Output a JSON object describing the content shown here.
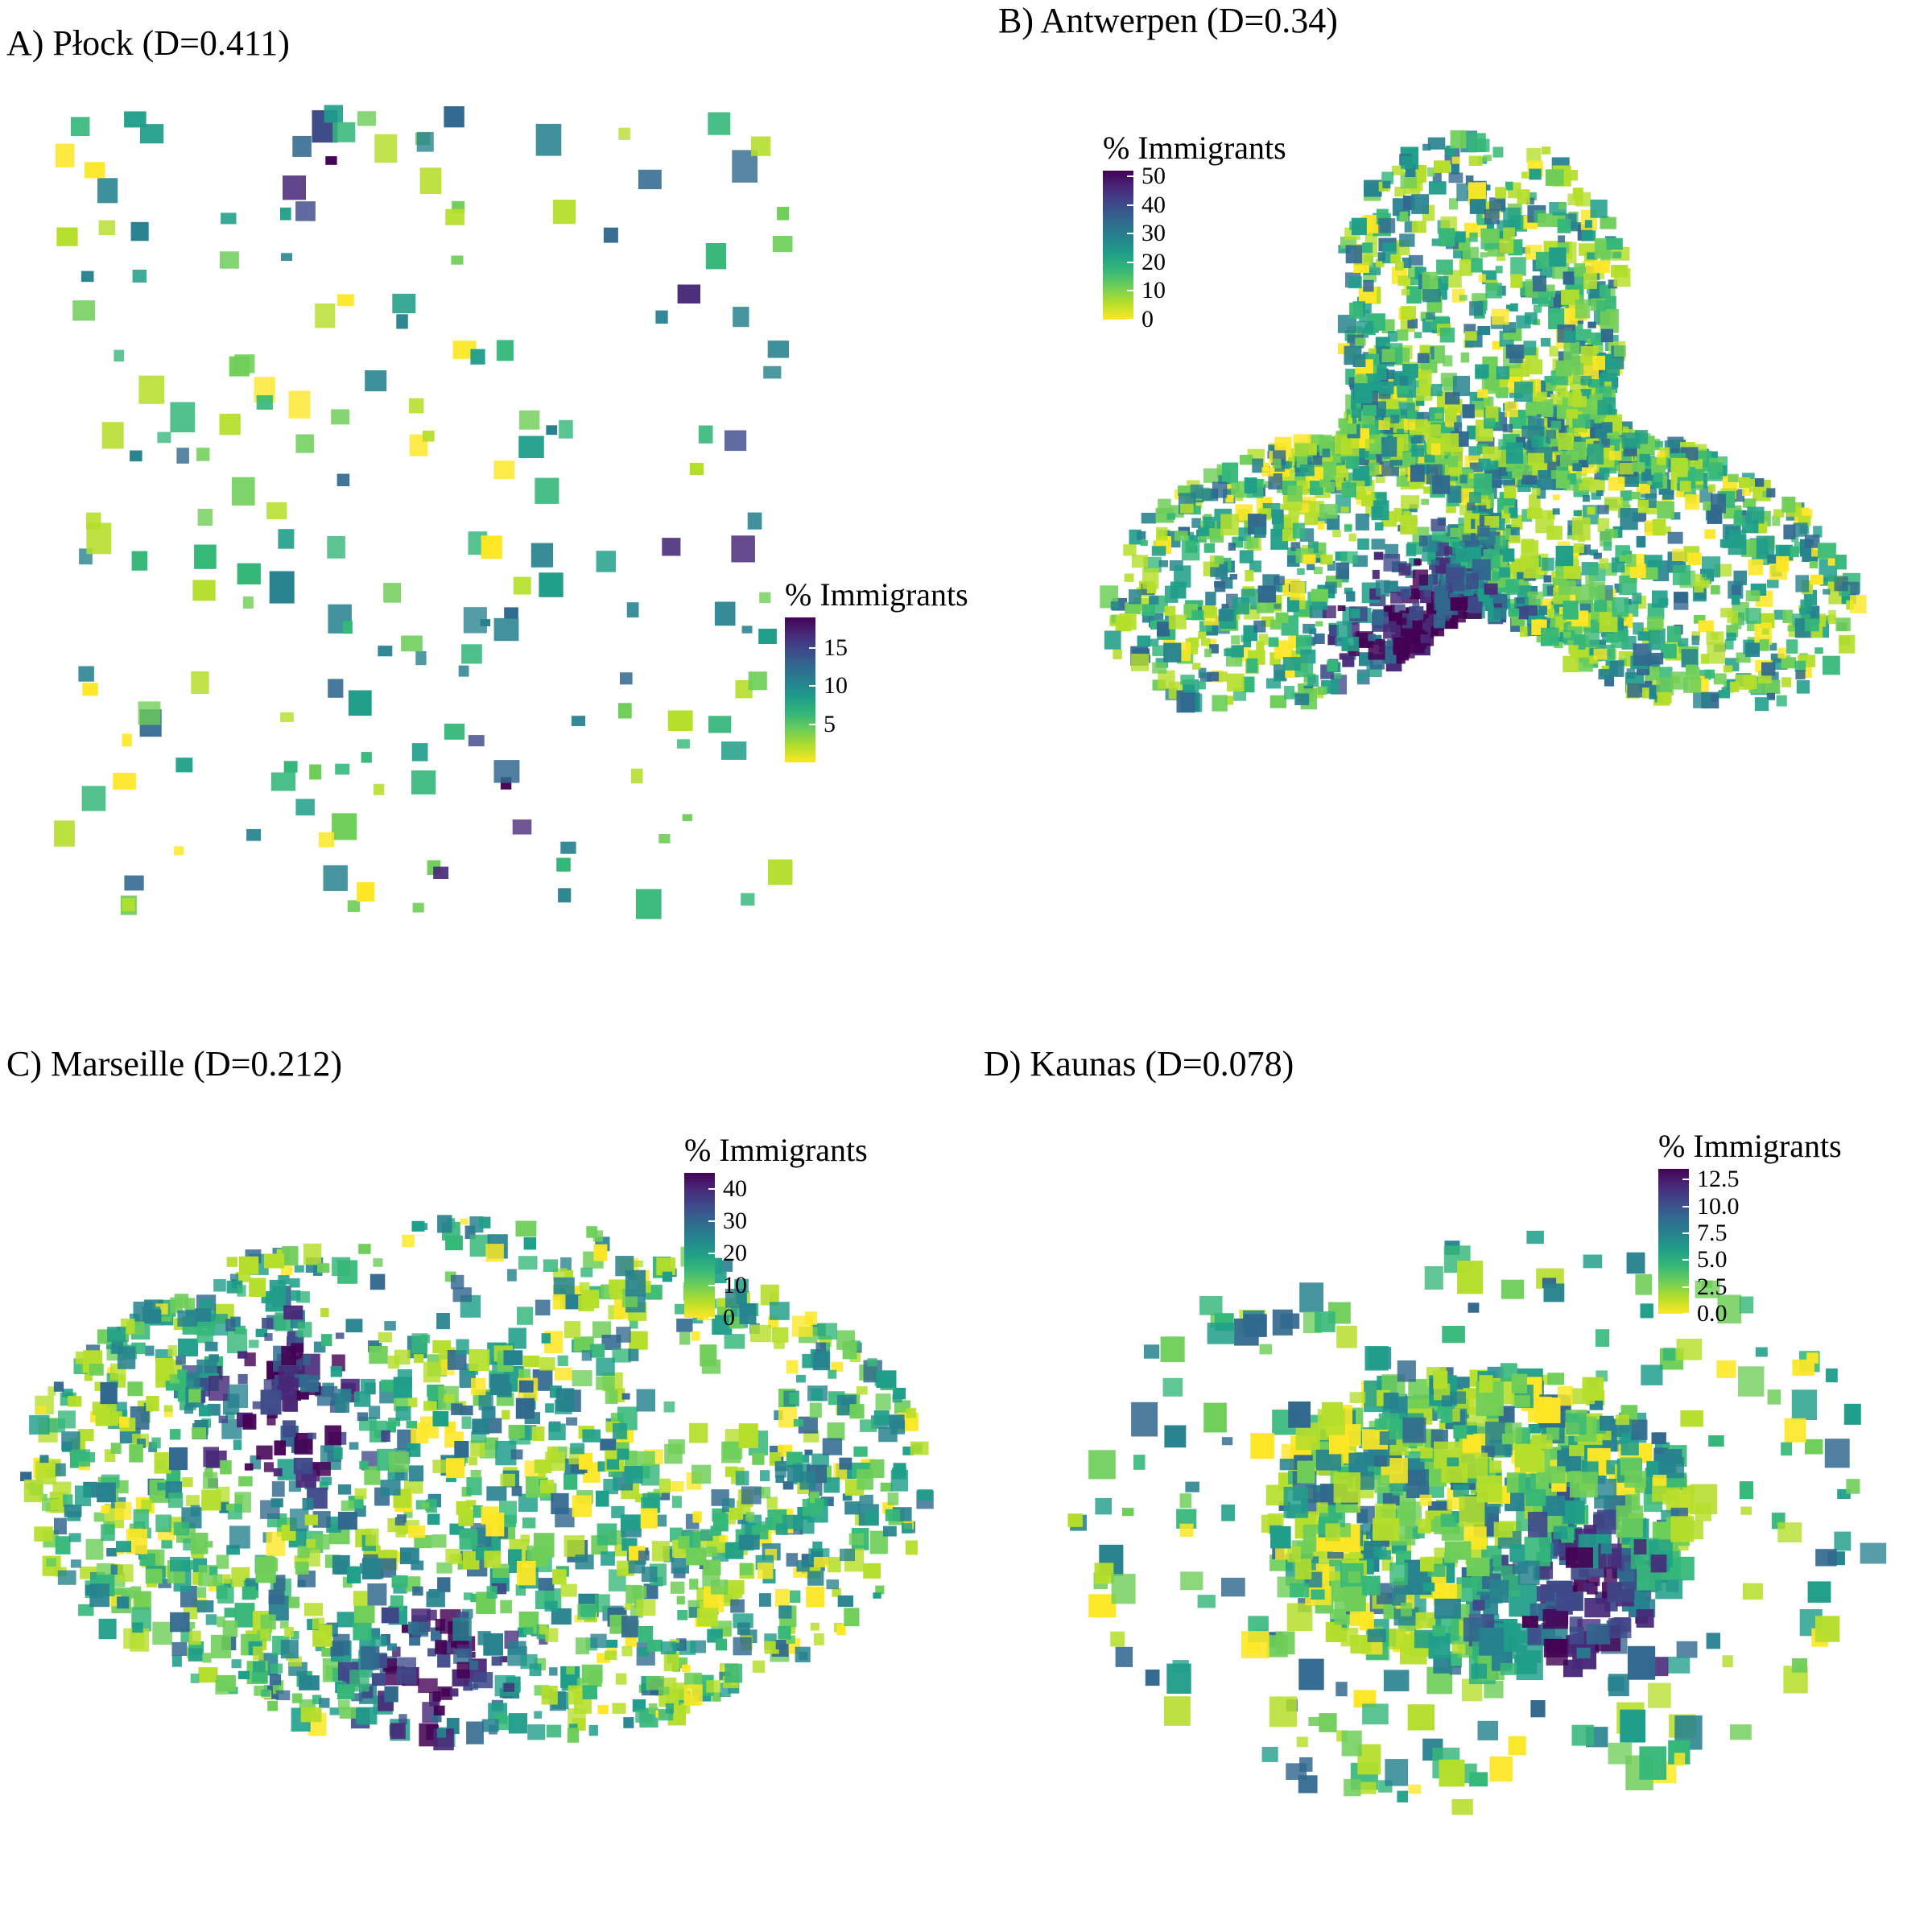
{
  "palette": [
    "#fde725",
    "#b5de2b",
    "#6ece58",
    "#35b779",
    "#1f9e89",
    "#26828e",
    "#31688e",
    "#3e4989",
    "#482878",
    "#440154"
  ],
  "panels": [
    {
      "id": "a",
      "title": "A) Płock (D=0.411)",
      "legend": {
        "title": "% Immigrants",
        "max": 19,
        "ticks": [
          {
            "value": 15,
            "label": "15"
          },
          {
            "value": 10,
            "label": "10"
          },
          {
            "value": 5,
            "label": "5"
          }
        ]
      },
      "seed": 11,
      "cells": 190,
      "cell_size": 22,
      "shape": "scatter",
      "hotspots": 4,
      "skew": 0.55
    },
    {
      "id": "b",
      "title": "B) Antwerpen (D=0.34)",
      "legend": {
        "title": "% Immigrants",
        "max": 52,
        "ticks": [
          {
            "value": 50,
            "label": "50"
          },
          {
            "value": 40,
            "label": "40"
          },
          {
            "value": 30,
            "label": "30"
          },
          {
            "value": 20,
            "label": "20"
          },
          {
            "value": 10,
            "label": "10"
          },
          {
            "value": 0,
            "label": "0"
          }
        ]
      },
      "seed": 23,
      "cells": 2600,
      "cell_size": 16,
      "shape": "blob",
      "hotspots": 1,
      "skew": 0.35
    },
    {
      "id": "c",
      "title": "C) Marseille (D=0.212)",
      "legend": {
        "title": "% Immigrants",
        "max": 45,
        "ticks": [
          {
            "value": 40,
            "label": "40"
          },
          {
            "value": 30,
            "label": "30"
          },
          {
            "value": 20,
            "label": "20"
          },
          {
            "value": 10,
            "label": "10"
          },
          {
            "value": 0,
            "label": "0"
          }
        ]
      },
      "seed": 37,
      "cells": 1700,
      "cell_size": 18,
      "shape": "ring",
      "hotspots": 2,
      "skew": 0.4
    },
    {
      "id": "d",
      "title": "D) Kaunas (D=0.078)",
      "legend": {
        "title": "% Immigrants",
        "max": 13.5,
        "ticks": [
          {
            "value": 12.5,
            "label": "12.5"
          },
          {
            "value": 10.0,
            "label": "10.0"
          },
          {
            "value": 7.5,
            "label": "7.5"
          },
          {
            "value": 5.0,
            "label": "5.0"
          },
          {
            "value": 2.5,
            "label": "2.5"
          },
          {
            "value": 0.0,
            "label": "0.0"
          }
        ]
      },
      "seed": 51,
      "cells": 900,
      "cell_size": 24,
      "shape": "cluster",
      "hotspots": 1,
      "skew": 0.5
    }
  ]
}
